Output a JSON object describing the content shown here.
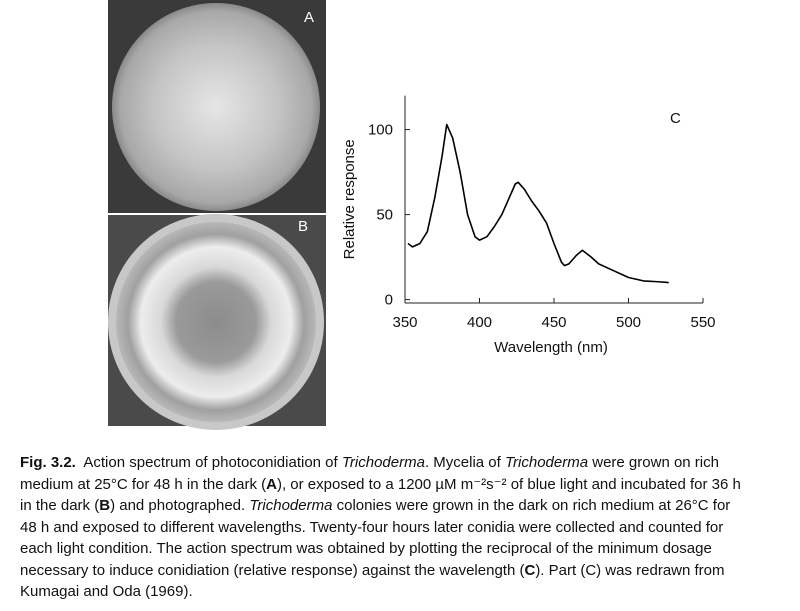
{
  "panels": {
    "a_label": "A",
    "b_label": "B"
  },
  "chart_data": {
    "type": "line",
    "annotation": "C",
    "x_label": "Wavelength (nm)",
    "y_label": "Relative response",
    "xlim": [
      350,
      550
    ],
    "xticks": [
      350,
      400,
      450,
      500,
      550
    ],
    "ylim": [
      -2,
      120
    ],
    "yticks": [
      0,
      50,
      100
    ],
    "color": "#000000",
    "x": [
      352,
      355,
      360,
      365,
      370,
      375,
      378,
      382,
      387,
      392,
      397,
      400,
      405,
      410,
      415,
      420,
      424,
      426,
      430,
      435,
      440,
      445,
      450,
      455,
      457,
      460,
      465,
      469,
      475,
      480,
      490,
      500,
      510,
      520,
      527
    ],
    "values": [
      33,
      31,
      33,
      40,
      60,
      85,
      103,
      95,
      75,
      50,
      37,
      35,
      37,
      43,
      50,
      60,
      68,
      69,
      65,
      58,
      52,
      45,
      33,
      22,
      20,
      21,
      26,
      29,
      25,
      21,
      17,
      13,
      11,
      10.5,
      10
    ]
  },
  "caption": {
    "lines": [
      [
        {
          "text": "Fig. 3.2.",
          "style": "bold"
        },
        {
          "text": "  Action spectrum of photoconidiation of "
        },
        {
          "text": "Trichoderma",
          "style": "italic"
        },
        {
          "text": ". Mycelia of "
        },
        {
          "text": "Trichoderma",
          "style": "italic"
        },
        {
          "text": " were grown on rich"
        }
      ],
      [
        {
          "text": "medium at 25°C for 48 h in the dark ("
        },
        {
          "text": "A",
          "style": "bold"
        },
        {
          "text": "), or exposed to a 1200 µM m⁻²s⁻² of blue light and incubated for 36 h"
        }
      ],
      [
        {
          "text": "in the dark ("
        },
        {
          "text": "B",
          "style": "bold"
        },
        {
          "text": ") and photographed. "
        },
        {
          "text": "Trichoderma",
          "style": "italic"
        },
        {
          "text": " colonies were grown in the dark on rich medium at 26°C for"
        }
      ],
      [
        {
          "text": "48 h and exposed to different wavelengths. Twenty-four hours later conidia were collected and counted for"
        }
      ],
      [
        {
          "text": "each light condition. The action spectrum was obtained by plotting the reciprocal of the minimum dosage"
        }
      ],
      [
        {
          "text": "necessary to induce conidiation (relative response) against the wavelength ("
        },
        {
          "text": "C",
          "style": "bold"
        },
        {
          "text": "). Part (C) was redrawn from"
        }
      ],
      [
        {
          "text": "Kumagai and Oda (1969)."
        }
      ]
    ]
  }
}
